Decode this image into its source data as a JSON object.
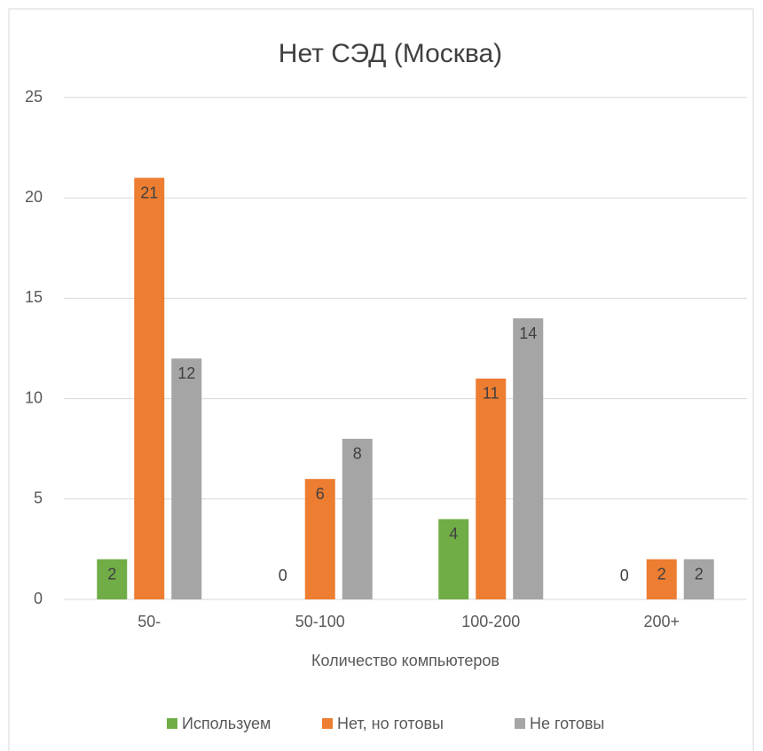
{
  "chart_data": {
    "type": "bar",
    "title": "Нет СЭД (Москва)",
    "x_label": "Количество компьютеров",
    "categories": [
      "50-",
      "50-100",
      "100-200",
      "200+"
    ],
    "series": [
      {
        "name": "Используем",
        "color": "#70ad47",
        "values": [
          2,
          0,
          4,
          0
        ]
      },
      {
        "name": "Нет, но готовы",
        "color": "#ed7d31",
        "values": [
          21,
          6,
          11,
          2
        ]
      },
      {
        "name": "Не готовы",
        "color": "#a5a5a5",
        "values": [
          12,
          8,
          14,
          2
        ]
      }
    ],
    "ylim": [
      0,
      25
    ],
    "yticks": [
      0,
      5,
      10,
      15,
      20,
      25
    ],
    "grid": true,
    "legend": "bottom",
    "data_labels": true
  }
}
